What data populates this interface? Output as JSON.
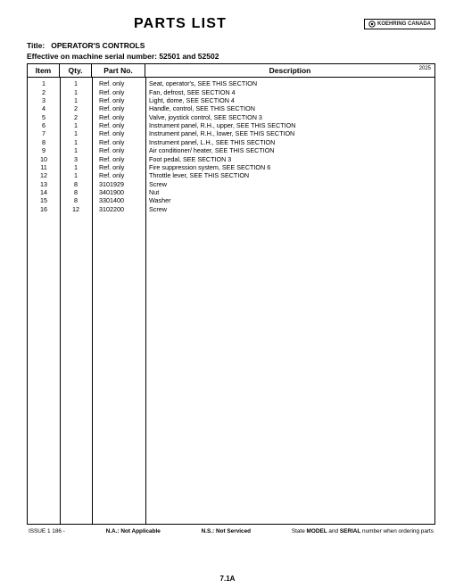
{
  "heading": "PARTS  LIST",
  "logo_text": "KOEHRING CANADA",
  "title_label": "Title:",
  "title_value": "OPERATOR'S CONTROLS",
  "serial_line": "Effective on machine serial number:  52501 and 52502",
  "columns": {
    "item": "Item",
    "qty": "Qty.",
    "pn": "Part No.",
    "desc": "Description"
  },
  "year": "2025",
  "rows": [
    {
      "item": "1",
      "qty": "1",
      "pn": "Ref. only",
      "desc": "Seat, operator's,  SEE THIS SECTION"
    },
    {
      "item": "2",
      "qty": "1",
      "pn": "Ref. only",
      "desc": "Fan, defrost,  SEE SECTION 4"
    },
    {
      "item": "3",
      "qty": "1",
      "pn": "Ref. only",
      "desc": "Light, dome,  SEE SECTION 4"
    },
    {
      "item": "4",
      "qty": "2",
      "pn": "Ref. only",
      "desc": "Handle, control,  SEE THIS SECTION"
    },
    {
      "item": "5",
      "qty": "2",
      "pn": "Ref. only",
      "desc": "Valve, joystick control,  SEE SECTION 3"
    },
    {
      "item": "6",
      "qty": "1",
      "pn": "Ref. only",
      "desc": "Instrument panel, R.H., upper,  SEE THIS SECTION"
    },
    {
      "item": "7",
      "qty": "1",
      "pn": "Ref. only",
      "desc": "Instrument panel, R.H., lower,  SEE THIS SECTION"
    },
    {
      "item": "8",
      "qty": "1",
      "pn": "Ref. only",
      "desc": "Instrument panel, L.H.,  SEE THIS SECTION"
    },
    {
      "item": "9",
      "qty": "1",
      "pn": "Ref. only",
      "desc": "Air conditioner/ heater,  SEE THIS SECTION"
    },
    {
      "item": "10",
      "qty": "3",
      "pn": "Ref. only",
      "desc": "Foot pedal,  SEE SECTION 3"
    },
    {
      "item": "11",
      "qty": "1",
      "pn": "Ref. only",
      "desc": "Fire suppression system,  SEE SECTION 6"
    },
    {
      "item": "12",
      "qty": "1",
      "pn": "Ref. only",
      "desc": "Throttle lever,  SEE THIS SECTION"
    },
    {
      "item": "13",
      "qty": "8",
      "pn": "3101929",
      "desc": "Screw"
    },
    {
      "item": "14",
      "qty": "8",
      "pn": "3401900",
      "desc": "Nut"
    },
    {
      "item": "15",
      "qty": "8",
      "pn": "3301400",
      "desc": "Washer"
    },
    {
      "item": "16",
      "qty": "12",
      "pn": "3102200",
      "desc": "Screw"
    }
  ],
  "footer": {
    "issue": "ISSUE 1   186 -",
    "na": "N.A.:  Not Applicable",
    "ns": "N.S.:  Not Serviced",
    "note_prefix": "State ",
    "note_b1": "MODEL",
    "note_mid": " and ",
    "note_b2": "SERIAL",
    "note_suffix": " number when ordering parts"
  },
  "page_number": "7.1A"
}
